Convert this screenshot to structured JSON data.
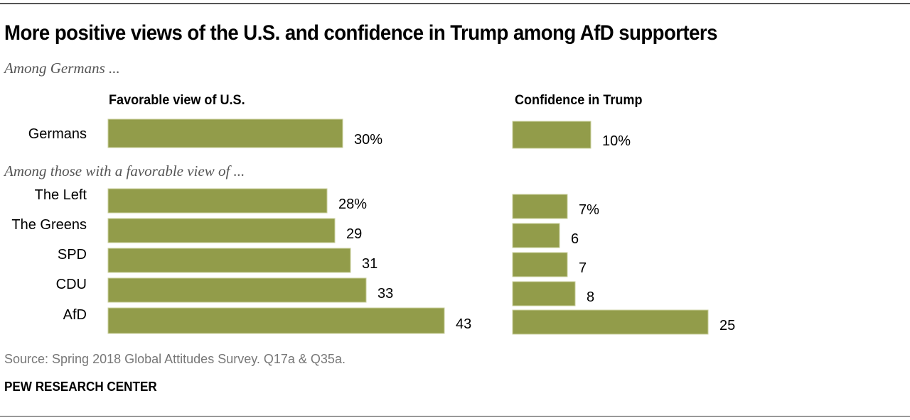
{
  "chart_data": {
    "type": "bar",
    "orientation": "horizontal",
    "title": "More positive views of the U.S. and confidence in Trump among AfD supporters",
    "subtitle": "Among Germans ...",
    "group_subtitle": "Among those with a favorable view of ...",
    "categories": [
      "Germans",
      "The Left",
      "The Greens",
      "SPD",
      "CDU",
      "AfD"
    ],
    "series": [
      {
        "name": "Favorable view of U.S.",
        "values": [
          30,
          28,
          29,
          31,
          33,
          43
        ],
        "value_labels": [
          "30%",
          "28%",
          "29",
          "31",
          "33",
          "43"
        ]
      },
      {
        "name": "Confidence in Trump",
        "values": [
          10,
          7,
          6,
          7,
          8,
          25
        ],
        "value_labels": [
          "10%",
          "7%",
          "6",
          "7",
          "8",
          "25"
        ]
      }
    ],
    "unit": "%",
    "xlim": [
      0,
      100
    ],
    "grid": false,
    "legend": "none",
    "colors": {
      "bar": "#929c4a",
      "bar_edge": "#c9cf9c"
    },
    "source": "Source: Spring 2018 Global Attitudes Survey. Q17a & Q35a.",
    "brand": "PEW RESEARCH CENTER"
  }
}
